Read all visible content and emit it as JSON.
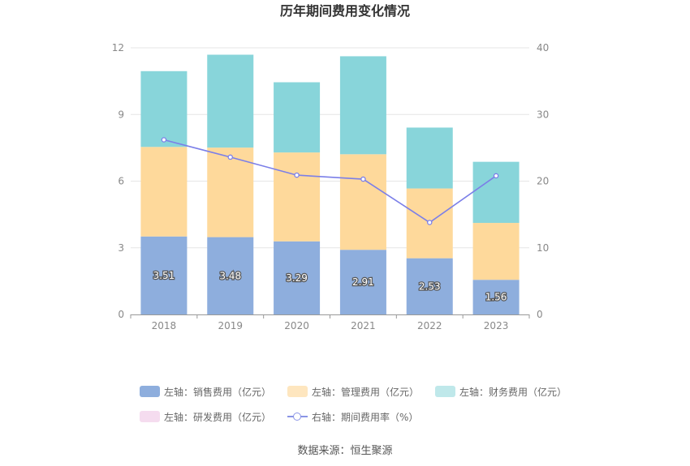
{
  "chart_data": {
    "type": "bar",
    "title": "历年期间费用变化情况",
    "categories": [
      "2018",
      "2019",
      "2020",
      "2021",
      "2022",
      "2023"
    ],
    "y_left": {
      "min": 0,
      "max": 12,
      "ticks": [
        "0",
        "3",
        "6",
        "9",
        "12"
      ]
    },
    "y_right": {
      "min": 0,
      "max": 40,
      "ticks": [
        "0",
        "10",
        "20",
        "30",
        "40"
      ]
    },
    "series": [
      {
        "name": "左轴：销售费用（亿元）",
        "type": "bar",
        "axis": "left",
        "color": "#8eaedd",
        "values": [
          3.51,
          3.48,
          3.29,
          2.91,
          2.53,
          1.56
        ],
        "labels": [
          "3.51",
          "3.48",
          "3.29",
          "2.91",
          "2.53",
          "1.56"
        ]
      },
      {
        "name": "左轴：管理费用（亿元）",
        "type": "bar",
        "axis": "left",
        "color": "#fed99b",
        "values": [
          4.03,
          4.03,
          4.0,
          4.3,
          3.14,
          2.56
        ]
      },
      {
        "name": "左轴：财务费用（亿元）",
        "type": "bar",
        "axis": "left",
        "color": "#88d5da",
        "values": [
          3.41,
          4.18,
          3.16,
          4.41,
          2.74,
          2.75
        ]
      },
      {
        "name": "左轴：研发费用（亿元）",
        "type": "bar",
        "axis": "left",
        "color": "#f5dcef",
        "values": [
          0,
          0,
          0,
          0,
          0,
          0
        ]
      },
      {
        "name": "右轴：期间费用率（%）",
        "type": "line",
        "axis": "right",
        "color": "#7b7fe8",
        "values": [
          26.2,
          23.6,
          20.9,
          20.3,
          13.8,
          20.8
        ]
      }
    ],
    "grid": true,
    "legend_position": "bottom"
  },
  "source_text": "数据来源：恒生聚源"
}
